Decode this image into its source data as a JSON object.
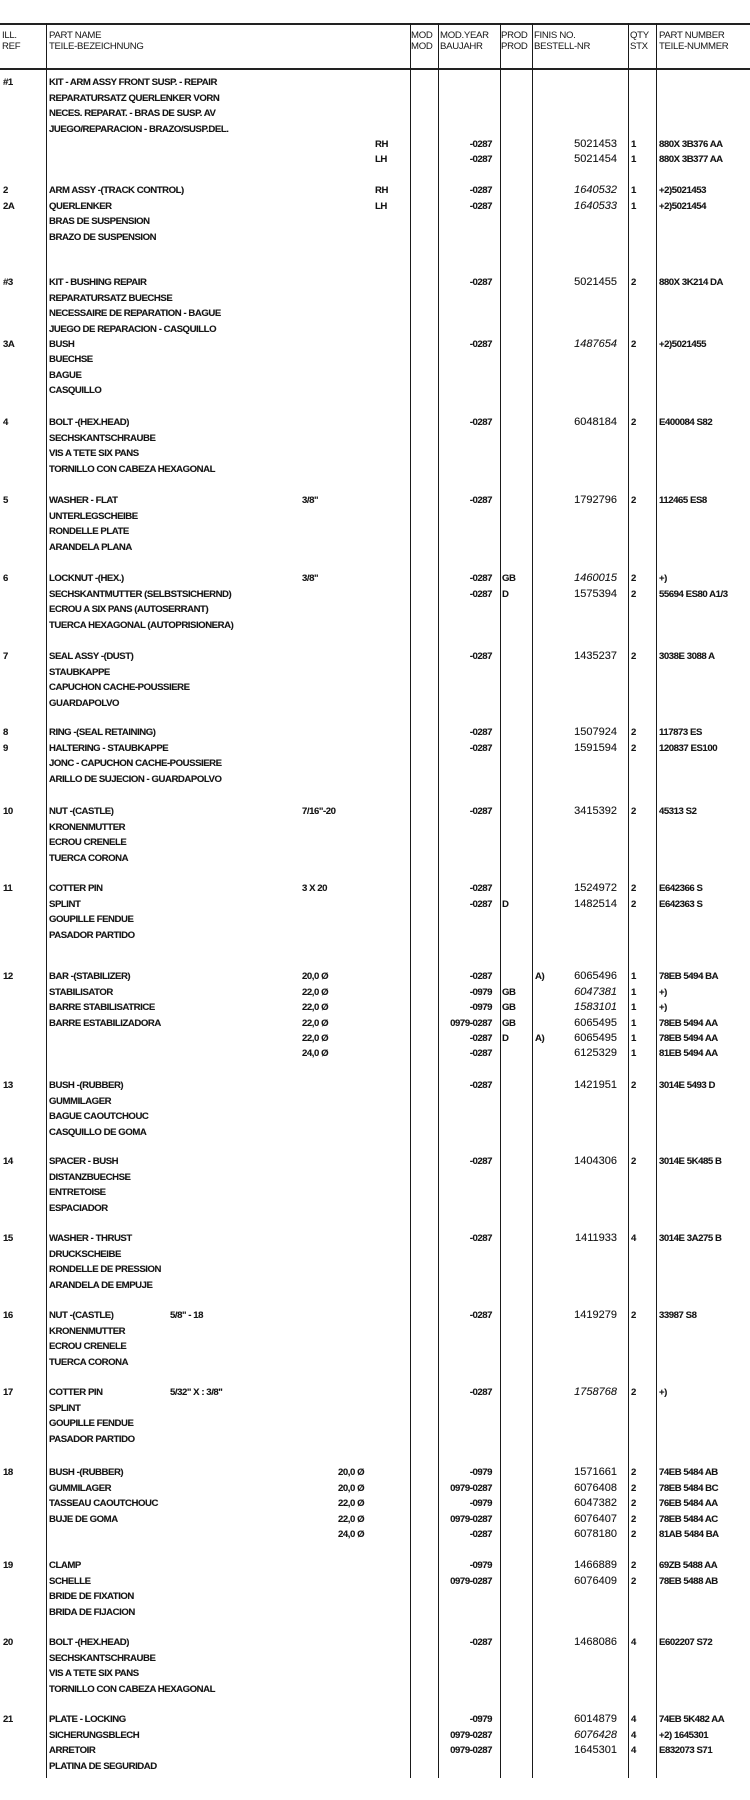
{
  "header": {
    "ref": [
      "ILL.",
      "REF"
    ],
    "name": [
      "PART NAME",
      "TEILE-BEZEICHNUNG"
    ],
    "mod": [
      "MOD",
      "MOD"
    ],
    "mod_year": [
      "MOD.YEAR",
      "BAUJAHR"
    ],
    "prod": [
      "PROD",
      "PROD"
    ],
    "finis": [
      "FINIS NO.",
      "BESTELL-NR"
    ],
    "qty": [
      "QTY",
      "STX"
    ],
    "part_number": [
      "PART NUMBER",
      "TEILE-NUMMER"
    ]
  },
  "groups": [
    {
      "lines": [
        {
          "ref": "#1",
          "name": "KIT - ARM ASSY FRONT SUSP. - REPAIR"
        },
        {
          "name": "REPARATURSATZ QUERLENKER VORN"
        },
        {
          "name": "NECES. REPARAT. - BRAS DE SUSP. AV"
        },
        {
          "name": "JUEGO/REPARACION - BRAZO/SUSP.DEL."
        },
        {
          "side": "RH",
          "mod_year": "-0287",
          "finis": "5021453",
          "qty": "1",
          "pn": "880X 3B376 AA"
        },
        {
          "side": "LH",
          "mod_year": "-0287",
          "finis": "5021454",
          "qty": "1",
          "pn": "880X 3B377 AA"
        }
      ]
    },
    {
      "lines": [
        {
          "ref": "2",
          "name": "ARM ASSY -(TRACK CONTROL)",
          "side": "RH",
          "mod_year": "-0287",
          "finis": "1640532",
          "italic": true,
          "qty": "1",
          "pn": "+2)5021453"
        },
        {
          "ref": "2A",
          "name": "QUERLENKER",
          "side": "LH",
          "mod_year": "-0287",
          "finis": "1640533",
          "italic": true,
          "qty": "1",
          "pn": "+2)5021454"
        },
        {
          "name": "BRAS DE SUSPENSION"
        },
        {
          "name": "BRAZO DE SUSPENSION"
        }
      ]
    },
    {
      "lines": [
        {
          "ref": "#3",
          "name": "KIT - BUSHING REPAIR",
          "mod_year": "-0287",
          "finis": "5021455",
          "qty": "2",
          "pn": "880X 3K214 DA"
        },
        {
          "name": "REPARATURSATZ BUECHSE"
        },
        {
          "name": "NECESSAIRE DE REPARATION - BAGUE"
        },
        {
          "name": "JUEGO DE REPARACION - CASQUILLO"
        },
        {
          "ref": "3A",
          "name": "BUSH",
          "mod_year": "-0287",
          "finis": "1487654",
          "italic": true,
          "qty": "2",
          "pn": "+2)5021455"
        },
        {
          "name": "BUECHSE"
        },
        {
          "name": "BAGUE"
        },
        {
          "name": "CASQUILLO"
        }
      ]
    },
    {
      "lines": [
        {
          "ref": "4",
          "name": "BOLT -(HEX.HEAD)",
          "mod_year": "-0287",
          "finis": "6048184",
          "qty": "2",
          "pn": "E400084 S82"
        },
        {
          "name": "SECHSKANTSCHRAUBE"
        },
        {
          "name": "VIS A TETE SIX PANS"
        },
        {
          "name": "TORNILLO CON CABEZA HEXAGONAL"
        }
      ]
    },
    {
      "lines": [
        {
          "ref": "5",
          "name": "WASHER - FLAT",
          "size": "3/8\"",
          "mod_year": "-0287",
          "finis": "1792796",
          "qty": "2",
          "pn": "112465 ES8"
        },
        {
          "name": "UNTERLEGSCHEIBE"
        },
        {
          "name": "RONDELLE PLATE"
        },
        {
          "name": "ARANDELA PLANA"
        }
      ]
    },
    {
      "lines": [
        {
          "ref": "6",
          "name": "LOCKNUT -(HEX.)",
          "size": "3/8\"",
          "mod_year": "-0287",
          "prod": "GB",
          "finis": "1460015",
          "italic": true,
          "qty": "2",
          "pn": "+)"
        },
        {
          "name": "SECHSKANTMUTTER (SELBSTSICHERND)",
          "mod_year": "-0287",
          "prod": "D",
          "finis": "1575394",
          "qty": "2",
          "pn": "55694 ES80 A1/3"
        },
        {
          "name": "ECROU A SIX PANS (AUTOSERRANT)"
        },
        {
          "name": "TUERCA HEXAGONAL (AUTOPRISIONERA)"
        }
      ]
    },
    {
      "lines": [
        {
          "ref": "7",
          "name": "SEAL ASSY -(DUST)",
          "mod_year": "-0287",
          "finis": "1435237",
          "qty": "2",
          "pn": "3038E 3088 A"
        },
        {
          "name": "STAUBKAPPE"
        },
        {
          "name": "CAPUCHON CACHE-POUSSIERE"
        },
        {
          "name": "GUARDAPOLVO"
        }
      ]
    },
    {
      "lines": [
        {
          "ref": "8",
          "name": "RING -(SEAL RETAINING)",
          "mod_year": "-0287",
          "finis": "1507924",
          "qty": "2",
          "pn": "117873 ES"
        },
        {
          "ref": "9",
          "name": "HALTERING - STAUBKAPPE",
          "mod_year": "-0287",
          "finis": "1591594",
          "qty": "2",
          "pn": "120837 ES100"
        },
        {
          "name": "JONC - CAPUCHON CACHE-POUSSIERE"
        },
        {
          "name": "ARILLO DE SUJECION - GUARDAPOLVO"
        }
      ]
    },
    {
      "lines": [
        {
          "ref": "10",
          "name": "NUT -(CASTLE)",
          "size": "7/16\"-20",
          "mod_year": "-0287",
          "finis": "3415392",
          "qty": "2",
          "pn": "45313 S2"
        },
        {
          "name": "KRONENMUTTER"
        },
        {
          "name": "ECROU CRENELE"
        },
        {
          "name": "TUERCA CORONA"
        }
      ]
    },
    {
      "lines": [
        {
          "ref": "11",
          "name": "COTTER PIN",
          "size": "3 X 20",
          "mod_year": "-0287",
          "finis": "1524972",
          "qty": "2",
          "pn": "E642366 S"
        },
        {
          "name": "SPLINT",
          "mod_year": "-0287",
          "prod": "D",
          "finis": "1482514",
          "qty": "2",
          "pn": "E642363 S"
        },
        {
          "name": "GOUPILLE FENDUE"
        },
        {
          "name": "PASADOR PARTIDO"
        }
      ]
    },
    {
      "lines": [
        {
          "ref": "12",
          "name": "BAR -(STABILIZER)",
          "size": "20,0 Ø",
          "mod_year": "-0287",
          "note": "A)",
          "finis": "6065496",
          "qty": "1",
          "pn": "78EB 5494 BA"
        },
        {
          "name": "STABILISATOR",
          "size": "22,0 Ø",
          "mod_year": "-0979",
          "prod": "GB",
          "finis": "6047381",
          "italic": true,
          "qty": "1",
          "pn": "+)"
        },
        {
          "name": "BARRE STABILISATRICE",
          "size": "22,0 Ø",
          "mod_year": "-0979",
          "prod": "GB",
          "finis": "1583101",
          "italic": true,
          "qty": "1",
          "pn": "+)"
        },
        {
          "name": "BARRE ESTABILIZADORA",
          "size": "22,0 Ø",
          "mod_year": "0979-0287",
          "prod": "GB",
          "finis": "6065495",
          "qty": "1",
          "pn": "78EB 5494 AA"
        },
        {
          "size": "22,0 Ø",
          "mod_year": "-0287",
          "prod": "D",
          "note": "A)",
          "finis": "6065495",
          "qty": "1",
          "pn": "78EB 5494 AA"
        },
        {
          "size": "24,0 Ø",
          "mod_year": "-0287",
          "finis": "6125329",
          "qty": "1",
          "pn": "81EB 5494 AA"
        }
      ]
    },
    {
      "lines": [
        {
          "ref": "13",
          "name": "BUSH -(RUBBER)",
          "mod_year": "-0287",
          "finis": "1421951",
          "qty": "2",
          "pn": "3014E 5493 D"
        },
        {
          "name": "GUMMILAGER"
        },
        {
          "name": "BAGUE CAOUTCHOUC"
        },
        {
          "name": "CASQUILLO DE GOMA"
        }
      ]
    },
    {
      "lines": [
        {
          "ref": "14",
          "name": "SPACER - BUSH",
          "mod_year": "-0287",
          "finis": "1404306",
          "qty": "2",
          "pn": "3014E 5K485 B"
        },
        {
          "name": "DISTANZBUECHSE"
        },
        {
          "name": "ENTRETOISE"
        },
        {
          "name": "ESPACIADOR"
        }
      ]
    },
    {
      "lines": [
        {
          "ref": "15",
          "name": "WASHER - THRUST",
          "mod_year": "-0287",
          "finis": "1411933",
          "qty": "4",
          "pn": "3014E 3A275 B"
        },
        {
          "name": "DRUCKSCHEIBE"
        },
        {
          "name": "RONDELLE DE PRESSION"
        },
        {
          "name": "ARANDELA DE EMPUJE"
        }
      ]
    },
    {
      "lines": [
        {
          "ref": "16",
          "name": "NUT -(CASTLE)",
          "size": "5/8\" - 18",
          "mod_year": "-0287",
          "finis": "1419279",
          "qty": "2",
          "pn": "33987 S8"
        },
        {
          "name": "KRONENMUTTER"
        },
        {
          "name": "ECROU CRENELE"
        },
        {
          "name": "TUERCA CORONA"
        }
      ]
    },
    {
      "lines": [
        {
          "ref": "17",
          "name": "COTTER PIN",
          "size": "5/32\" X : 3/8\"",
          "mod_year": "-0287",
          "finis": "1758768",
          "italic": true,
          "qty": "2",
          "pn": "+)"
        },
        {
          "name": "SPLINT"
        },
        {
          "name": "GOUPILLE FENDUE"
        },
        {
          "name": "PASADOR PARTIDO"
        }
      ]
    },
    {
      "lines": [
        {
          "ref": "18",
          "name": "BUSH -(RUBBER)",
          "size": "20,0 Ø",
          "mod_year": "-0979",
          "finis": "1571661",
          "qty": "2",
          "pn": "74EB 5484 AB"
        },
        {
          "name": "GUMMILAGER",
          "size": "20,0 Ø",
          "mod_year": "0979-0287",
          "finis": "6076408",
          "qty": "2",
          "pn": "78EB 5484 BC"
        },
        {
          "name": "TASSEAU CAOUTCHOUC",
          "size": "22,0 Ø",
          "mod_year": "-0979",
          "finis": "6047382",
          "qty": "2",
          "pn": "76EB 5484 AA"
        },
        {
          "name": "BUJE DE GOMA",
          "size": "22,0 Ø",
          "mod_year": "0979-0287",
          "finis": "6076407",
          "qty": "2",
          "pn": "78EB 5484 AC"
        },
        {
          "size": "24,0 Ø",
          "mod_year": "-0287",
          "finis": "6078180",
          "qty": "2",
          "pn": "81AB 5484 BA"
        }
      ]
    },
    {
      "lines": [
        {
          "ref": "19",
          "name": "CLAMP",
          "mod_year": "-0979",
          "finis": "1466889",
          "qty": "2",
          "pn": "69ZB 5488 AA"
        },
        {
          "name": "SCHELLE",
          "mod_year": "0979-0287",
          "finis": "6076409",
          "qty": "2",
          "pn": "78EB 5488 AB"
        },
        {
          "name": "BRIDE DE FIXATION"
        },
        {
          "name": "BRIDA DE FIJACION"
        }
      ]
    },
    {
      "lines": [
        {
          "ref": "20",
          "name": "BOLT -(HEX.HEAD)",
          "mod_year": "-0287",
          "finis": "1468086",
          "qty": "4",
          "pn": "E602207 S72"
        },
        {
          "name": "SECHSKANTSCHRAUBE"
        },
        {
          "name": "VIS A TETE SIX PANS"
        },
        {
          "name": "TORNILLO CON CABEZA HEXAGONAL"
        }
      ]
    },
    {
      "lines": [
        {
          "ref": "21",
          "name": "PLATE - LOCKING",
          "mod_year": "-0979",
          "finis": "6014879",
          "qty": "4",
          "pn": "74EB 5K482 AA"
        },
        {
          "name": "SICHERUNGSBLECH",
          "mod_year": "0979-0287",
          "finis": "6076428",
          "italic": true,
          "qty": "4",
          "pn": "+2) 1645301"
        },
        {
          "name": "ARRETOIR",
          "mod_year": "0979-0287",
          "finis": "1645301",
          "qty": "4",
          "pn": "E832073 S71"
        },
        {
          "name": "PLATINA DE SEGURIDAD"
        }
      ]
    }
  ]
}
